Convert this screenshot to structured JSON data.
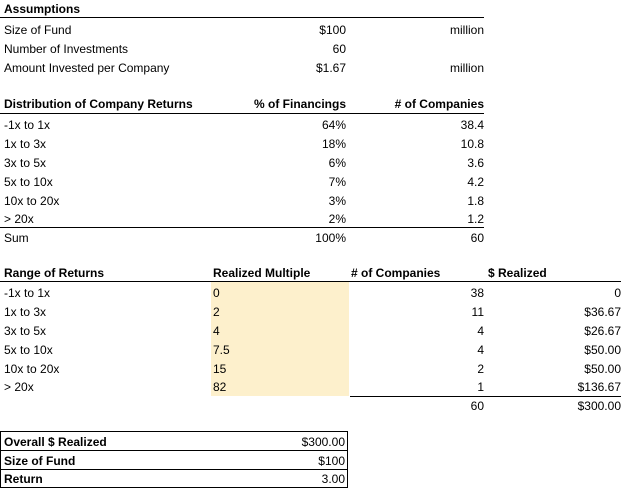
{
  "assumptions": {
    "header": "Assumptions",
    "rows": [
      {
        "label": "Size of Fund",
        "value": "$100",
        "unit": "million"
      },
      {
        "label": "Number of Investments",
        "value": "60",
        "unit": ""
      },
      {
        "label": "Amount Invested per Company",
        "value": "$1.67",
        "unit": "million"
      }
    ]
  },
  "distribution": {
    "headers": [
      "Distribution of Company Returns",
      "% of Financings",
      "# of Companies"
    ],
    "rows": [
      [
        "-1x to 1x",
        "64%",
        "38.4"
      ],
      [
        "1x to 3x",
        "18%",
        "10.8"
      ],
      [
        "3x to 5x",
        "6%",
        "3.6"
      ],
      [
        "5x to 10x",
        "7%",
        "4.2"
      ],
      [
        "10x to 20x",
        "3%",
        "1.8"
      ],
      [
        "> 20x",
        "2%",
        "1.2"
      ]
    ],
    "total": [
      "Sum",
      "100%",
      "60"
    ]
  },
  "range": {
    "headers": [
      "Range of Returns",
      "Realized Multiple",
      "# of Companies",
      "$ Realized"
    ],
    "rows": [
      [
        "-1x to 1x",
        "0",
        "38",
        "0"
      ],
      [
        "1x to 3x",
        "2",
        "11",
        "$36.67"
      ],
      [
        "3x to 5x",
        "4",
        "4",
        "$26.67"
      ],
      [
        "5x to 10x",
        "7.5",
        "4",
        "$50.00"
      ],
      [
        "10x to 20x",
        "15",
        "2",
        "$50.00"
      ],
      [
        "> 20x",
        "82",
        "1",
        "$136.67"
      ]
    ],
    "total": [
      "",
      "",
      "60",
      "$300.00"
    ]
  },
  "summary": {
    "rows": [
      {
        "label": "Overall $ Realized",
        "value": "$300.00"
      },
      {
        "label": "Size of Fund",
        "value": "$100"
      },
      {
        "label": "Return",
        "value": "3.00"
      }
    ]
  }
}
